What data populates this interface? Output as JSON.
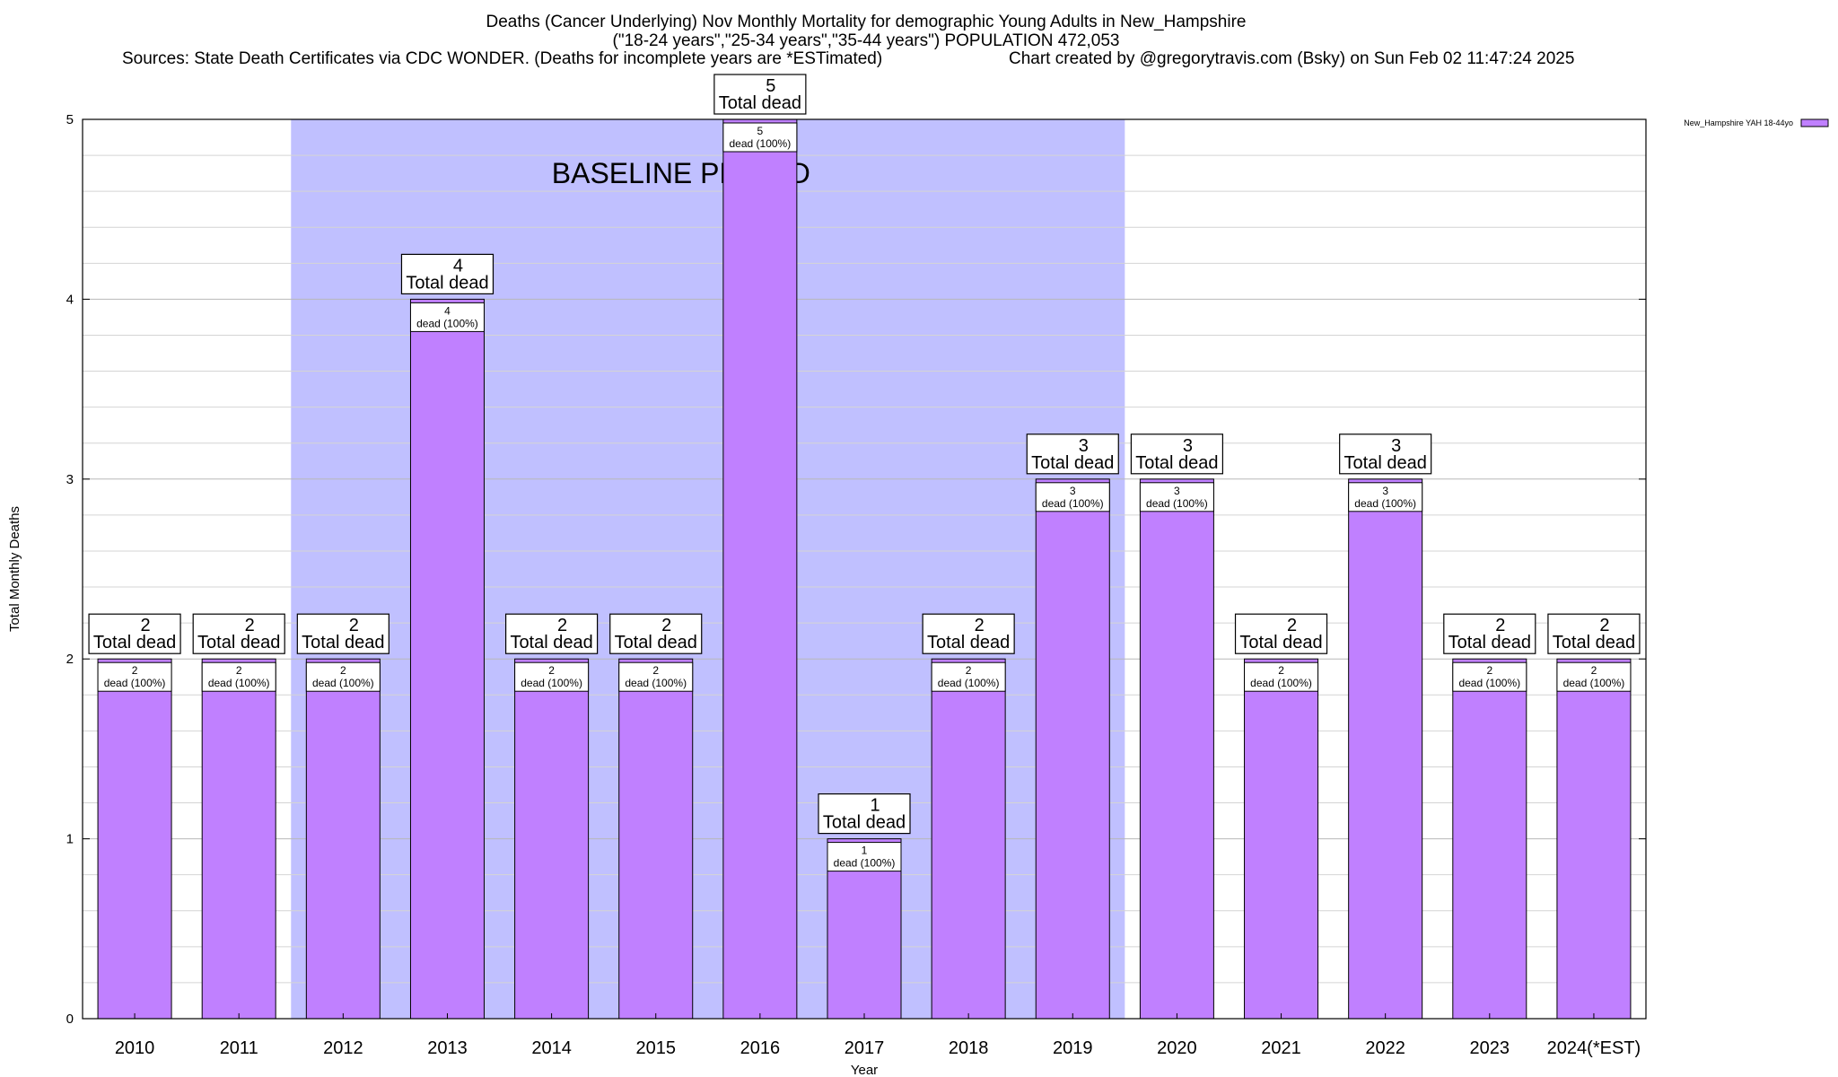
{
  "titles": {
    "line1": "Deaths (Cancer Underlying) Nov Monthly Mortality for demographic Young Adults in New_Hampshire",
    "line2": "(\"18-24 years\",\"25-34 years\",\"35-44 years\") POPULATION 472,053",
    "sources": "Sources: State Death Certificates via CDC WONDER. (Deaths for incomplete years are *ESTimated)",
    "credit": "Chart created by @gregorytravis.com (Bsky) on Sun Feb 02 11:47:24 2025"
  },
  "chart_data": {
    "type": "bar",
    "xlabel": "Year",
    "ylabel": "Total Monthly Deaths",
    "ylim": [
      0,
      5
    ],
    "yticks": [
      0,
      1,
      2,
      3,
      4,
      5
    ],
    "grid": true,
    "categories": [
      "2010",
      "2011",
      "2012",
      "2013",
      "2014",
      "2015",
      "2016",
      "2017",
      "2018",
      "2019",
      "2020",
      "2021",
      "2022",
      "2023",
      "2024(*EST)"
    ],
    "series": [
      {
        "name": "New_Hampshire YAH 18-44yo",
        "color": "#c080ff",
        "values": [
          2,
          2,
          2,
          4,
          2,
          2,
          5,
          1,
          2,
          3,
          3,
          2,
          3,
          2,
          2
        ]
      }
    ],
    "bar_label_top_suffix": "Total dead",
    "bar_label_inner_suffix": "dead (100%)",
    "baseline_period": {
      "label": "BASELINE PERIOD",
      "start": "2012",
      "end": "2019",
      "color": "#c0c0ff"
    },
    "legend_position": "top-right"
  }
}
